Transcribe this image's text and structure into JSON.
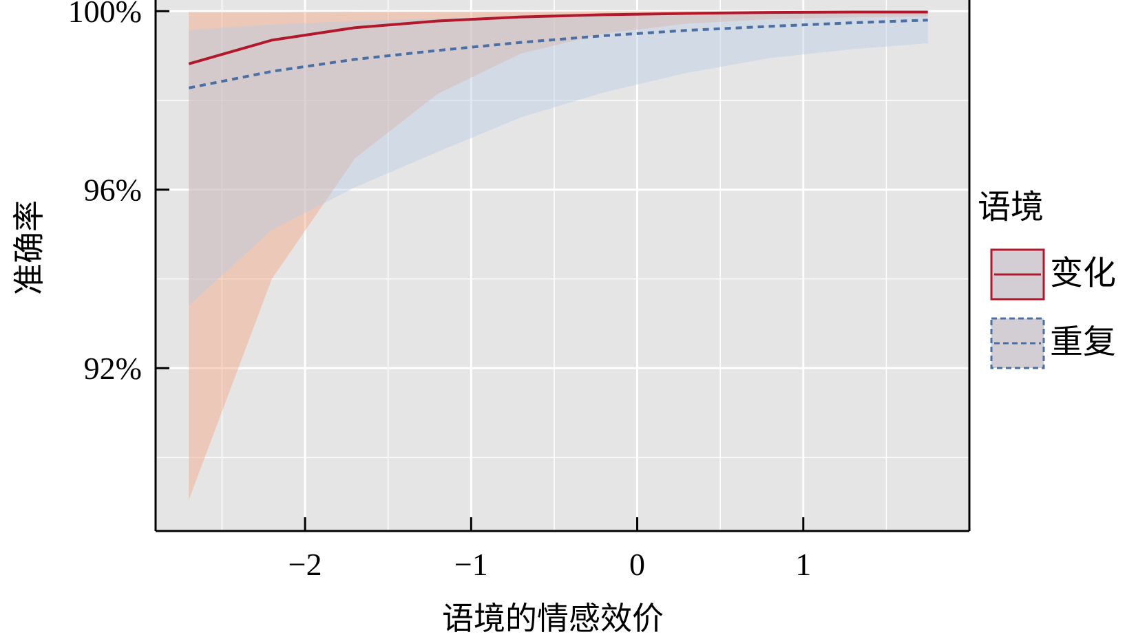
{
  "chart_data": {
    "type": "line",
    "title": "",
    "xlabel": "语境的情感效价",
    "ylabel": "准确率",
    "xlim": [
      -2.9,
      2.0
    ],
    "ylim": [
      0.8835,
      1.0025
    ],
    "x_ticks": [
      -2,
      -1,
      0,
      1
    ],
    "x_tick_labels": [
      "−2",
      "−1",
      "0",
      "1"
    ],
    "x_minor_grid": [
      -2.5,
      -1.5,
      -0.5,
      0.5,
      1.5
    ],
    "y_ticks": [
      1.0,
      0.96,
      0.92
    ],
    "y_tick_labels": [
      "100%",
      "96%",
      "92%"
    ],
    "y_minor_grid": [
      0.98,
      0.94,
      0.9
    ],
    "grid": true,
    "background": "#e5e5e5",
    "legend": {
      "title": "语境",
      "placement": "right"
    },
    "series": [
      {
        "name": "变化",
        "color": "#b2182b",
        "band_color": "#f4a582",
        "line_style": "solid",
        "x": [
          -2.7,
          -2.2,
          -1.7,
          -1.2,
          -0.7,
          -0.2,
          0.3,
          0.8,
          1.3,
          1.75
        ],
        "y": [
          0.9882,
          0.9935,
          0.9963,
          0.9978,
          0.9987,
          0.9992,
          0.9995,
          0.9997,
          0.9998,
          0.9998
        ],
        "ci_low": [
          0.8905,
          0.94,
          0.967,
          0.9815,
          0.9905,
          0.995,
          0.9972,
          0.9982,
          0.9986,
          0.9988
        ],
        "ci_high": [
          0.9998,
          0.9998,
          0.9999,
          0.9999,
          0.9999,
          1.0,
          1.0,
          1.0,
          1.0,
          1.0
        ]
      },
      {
        "name": "重复",
        "color": "#4a6fa5",
        "band_color": "#b8cbe4",
        "line_style": "dashed",
        "x": [
          -2.7,
          -2.2,
          -1.7,
          -1.2,
          -0.7,
          -0.2,
          0.3,
          0.8,
          1.3,
          1.75
        ],
        "y": [
          0.9828,
          0.9865,
          0.9892,
          0.9912,
          0.993,
          0.9945,
          0.9957,
          0.9966,
          0.9974,
          0.998
        ],
        "ci_low": [
          0.934,
          0.951,
          0.9605,
          0.9685,
          0.9762,
          0.9818,
          0.9862,
          0.9895,
          0.9915,
          0.9928
        ],
        "ci_high": [
          0.9958,
          0.997,
          0.9978,
          0.9984,
          0.9988,
          0.9991,
          0.9993,
          0.9994,
          0.9995,
          0.9996
        ]
      }
    ]
  }
}
